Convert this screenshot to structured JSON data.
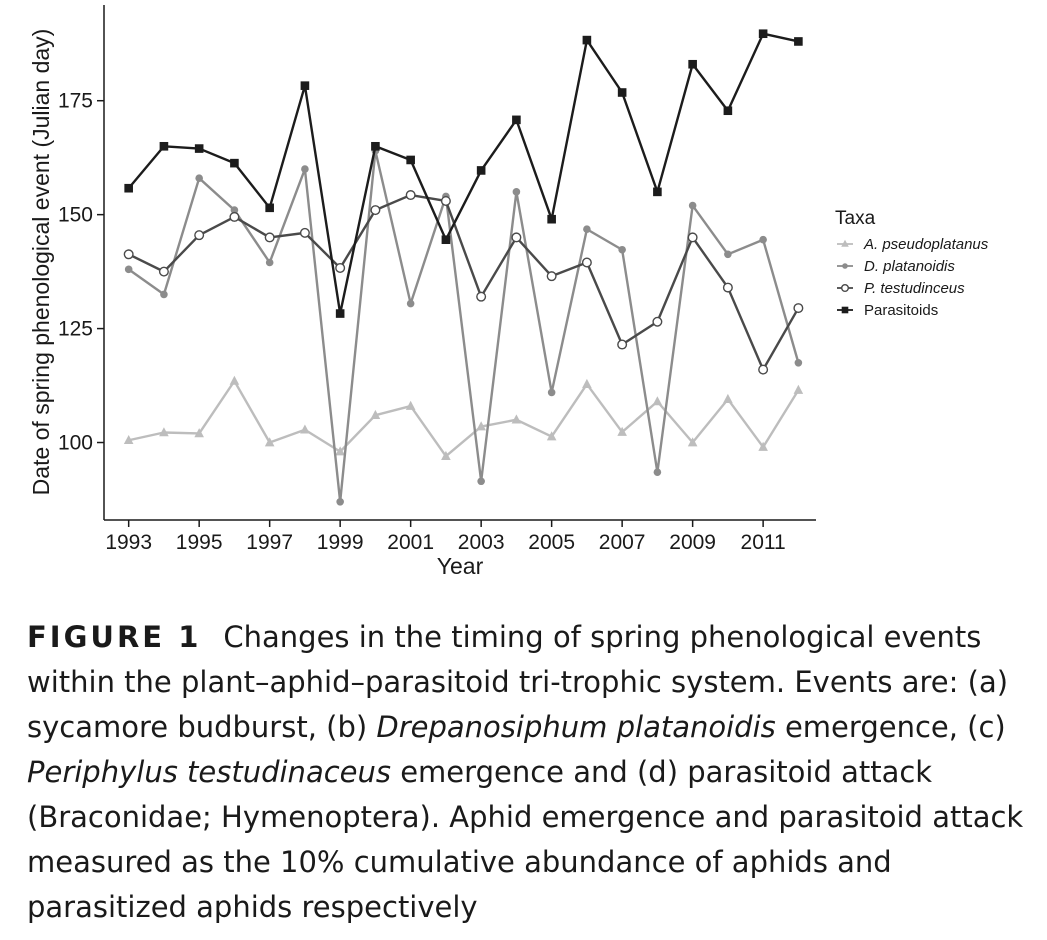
{
  "chart_data": {
    "type": "line",
    "xlabel": "Year",
    "ylabel": "Date of spring phenological event (Julian day)",
    "x": [
      1993,
      1994,
      1995,
      1996,
      1997,
      1998,
      1999,
      2000,
      2001,
      2002,
      2003,
      2004,
      2005,
      2006,
      2007,
      2008,
      2009,
      2010,
      2011,
      2012
    ],
    "xticks": [
      "1993",
      "1995",
      "1997",
      "1999",
      "2001",
      "2003",
      "2005",
      "2007",
      "2009",
      "2011"
    ],
    "yticks": [
      "100",
      "125",
      "150",
      "175"
    ],
    "xlim": [
      1992.3,
      2012.5
    ],
    "ylim": [
      83,
      196
    ],
    "grid": false,
    "legend_position": "right",
    "legend_title": "Taxa",
    "series": [
      {
        "name": "A. pseudoplatanus",
        "italic": true,
        "color": "#bdbdbd",
        "marker": "triangle",
        "values": [
          100.5,
          102.2,
          102,
          113.5,
          100,
          102.8,
          98,
          106,
          108,
          97,
          103.5,
          105,
          101.3,
          112.8,
          102.3,
          109,
          100,
          109.5,
          99,
          111.5
        ]
      },
      {
        "name": "D. platanoidis",
        "italic": true,
        "color": "#8c8c8c",
        "marker": "dot",
        "values": [
          138,
          132.5,
          158,
          151,
          139.5,
          160,
          87,
          164,
          130.5,
          154,
          91.5,
          155,
          111,
          146.8,
          142.3,
          93.5,
          152,
          141.3,
          144.5,
          117.5
        ]
      },
      {
        "name": "P. testudinceus",
        "italic": true,
        "color": "#4a4a4a",
        "marker": "open-circle",
        "values": [
          141.3,
          137.5,
          145.5,
          149.5,
          145,
          146,
          138.3,
          151,
          154.3,
          153,
          132,
          145,
          136.5,
          139.5,
          121.5,
          126.5,
          145,
          134,
          116,
          129.5
        ]
      },
      {
        "name": "Parasitoids",
        "italic": false,
        "color": "#1c1c1c",
        "marker": "square",
        "values": [
          155.8,
          165,
          164.5,
          161.3,
          151.5,
          178.3,
          128.3,
          165,
          162,
          144.5,
          159.7,
          170.8,
          149,
          188.3,
          176.8,
          155,
          183,
          172.8,
          189.7,
          188
        ]
      }
    ]
  },
  "caption": {
    "label": "FIGURE 1",
    "t1": "Changes in the timing of spring phenological events within the plant–aphid–parasitoid tri-trophic system. Events are: (a) sycamore budburst, (b) ",
    "i1": "Drepanosiphum platanoidis",
    "t2": " emergence, (c) ",
    "i2": "Periphylus testudinaceus",
    "t3": " emergence and (d) parasitoid attack (Braconidae; Hymenoptera). Aphid emergence and parasitoid attack measured as the 10% cumulative abundance of aphids and parasitized aphids respectively"
  }
}
